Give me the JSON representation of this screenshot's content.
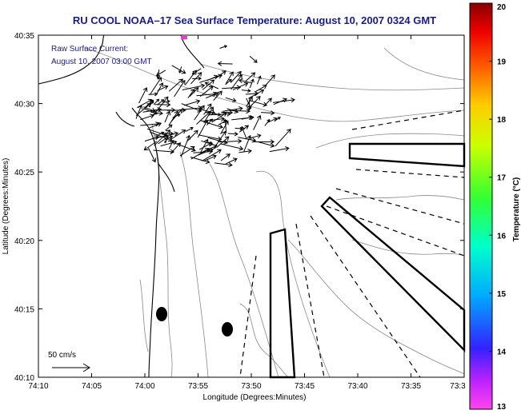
{
  "title": "RU COOL  NOAA–17  Sea Surface Temperature:  August 10, 2007 0324 GMT",
  "current_label": {
    "line1": "Raw Surface Current:",
    "line2": "August 10, 2007 03:00 GMT"
  },
  "scale": {
    "label": "50 cm/s"
  },
  "axes": {
    "xlabel": "Longitude (Degrees:Minutes)",
    "ylabel": "Latitude (Degrees:Minutes)",
    "x_ticks": [
      "74:10",
      "74:05",
      "74:00",
      "73:55",
      "73:50",
      "73:45",
      "73:40",
      "73:35",
      "73:3"
    ],
    "y_ticks": [
      "40:10",
      "40:15",
      "40:20",
      "40:25",
      "40:30",
      "40:35"
    ]
  },
  "colorbar": {
    "label": "Temperature (°C)",
    "ticks": [
      "13",
      "14",
      "15",
      "16",
      "17",
      "18",
      "19",
      "20"
    ],
    "colors": [
      "#ff33dd",
      "#aa22ff",
      "#0000ff",
      "#00ccff",
      "#00ff88",
      "#ccff00",
      "#ffcc00",
      "#ff6600",
      "#ff0000",
      "#880000"
    ]
  }
}
